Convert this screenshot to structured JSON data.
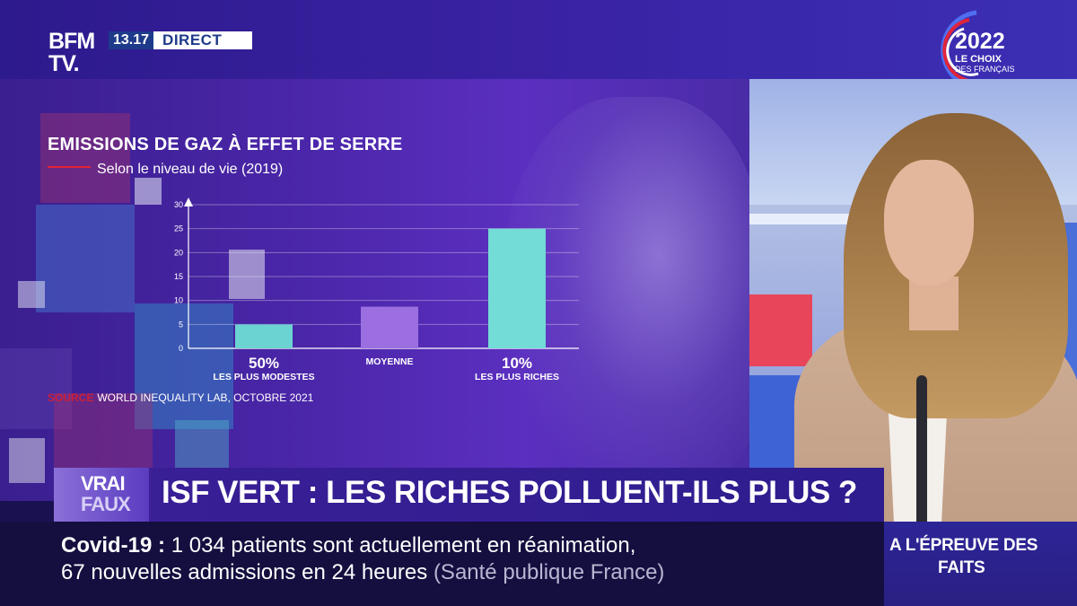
{
  "header": {
    "channel_logo_line1": "BFM",
    "channel_logo_line2": "TV.",
    "time": "13.17",
    "live_label": "DIRECT",
    "election_year": "2022",
    "election_tagline": "LE CHOIX",
    "election_tagline2": "DES FRANÇAIS"
  },
  "colors": {
    "bar_low": "#6bd3d1",
    "bar_mid": "#9b6fe0",
    "bar_high": "#74dcd6",
    "accent_red": "#e0243a"
  },
  "chart_data": {
    "type": "bar",
    "title": "EMISSIONS DE GAZ À EFFET DE SERRE",
    "subtitle": "Selon le niveau de vie (2019)",
    "categories": [
      {
        "main": "50%",
        "sub": "LES PLUS MODESTES"
      },
      {
        "main": "",
        "sub": "MOYENNE"
      },
      {
        "main": "10%",
        "sub": "LES PLUS RICHES"
      }
    ],
    "values": [
      5,
      8.7,
      25
    ],
    "ylim": [
      0,
      30
    ],
    "yticks": [
      0,
      5,
      10,
      15,
      20,
      25,
      30
    ],
    "grid": true,
    "source_label": "SOURCE",
    "source_text": "WORLD INEQUALITY LAB, OCTOBRE 2021"
  },
  "lower_third": {
    "badge_line1": "VRAI",
    "badge_line2": "FAUX",
    "headline": "ISF VERT : LES RICHES POLLUENT-ILS PLUS ?"
  },
  "ticker": {
    "topic": "Covid-19",
    "separator": ":",
    "line1": "1 034 patients sont actuellement en réanimation,",
    "line2": "67 nouvelles admissions en 24 heures",
    "source": "(Santé publique France)"
  },
  "show": {
    "line1": "A L'ÉPREUVE DES",
    "line2": "FAITS"
  }
}
